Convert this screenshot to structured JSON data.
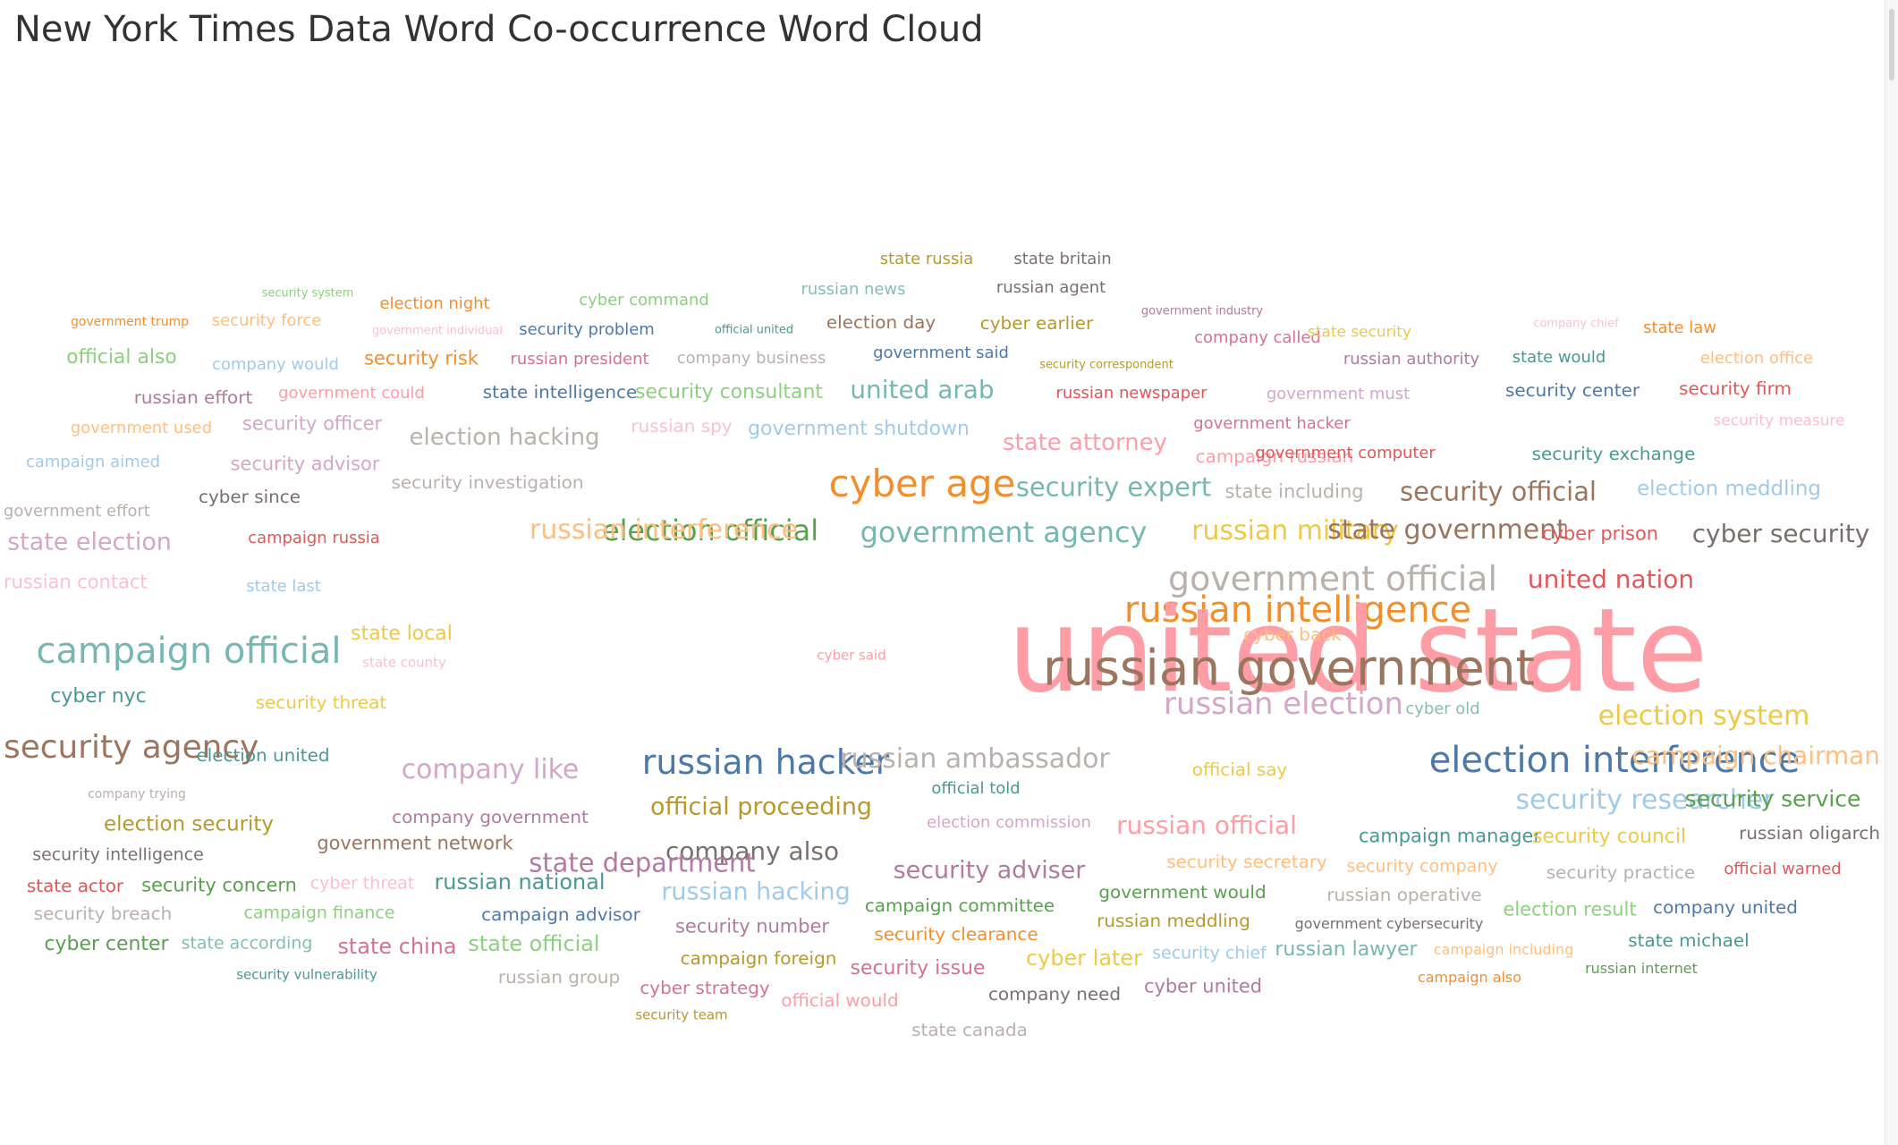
{
  "title": "New York Times Data Word Co-occurrence Word Cloud",
  "colors": {
    "c1": "#f28e2b",
    "c2": "#59a14f",
    "c3": "#4e79a7",
    "c4": "#e15759",
    "c5": "#76b7b2",
    "c6": "#edc948",
    "c7": "#b07aa1",
    "c8": "#ff9da7",
    "c9": "#9c755f",
    "c10": "#bab0ac",
    "c11": "#ffbe7d",
    "c12": "#8cd17d",
    "c13": "#499894",
    "c14": "#86bcb6",
    "c15": "#a0cbe8",
    "c16": "#d4a6c8",
    "c17": "#b6992d",
    "c18": "#79706e",
    "c19": "#d37295",
    "c20": "#fabfd2"
  },
  "chart_data": {
    "type": "wordcloud",
    "title": "New York Times Data Word Co-occurrence Word Cloud",
    "words": [
      {
        "text": "state russia",
        "weight": 18,
        "color": "#b6992d"
      },
      {
        "text": "state britain",
        "weight": 18,
        "color": "#79706e"
      },
      {
        "text": "security system",
        "weight": 13,
        "color": "#8cd17d"
      },
      {
        "text": "cyber command",
        "weight": 18,
        "color": "#8cd17d"
      },
      {
        "text": "russian news",
        "weight": 18,
        "color": "#86bcb6"
      },
      {
        "text": "russian agent",
        "weight": 18,
        "color": "#79706e"
      },
      {
        "text": "election night",
        "weight": 18,
        "color": "#f28e2b"
      },
      {
        "text": "government industry",
        "weight": 13,
        "color": "#b07aa1"
      },
      {
        "text": "government trump",
        "weight": 14,
        "color": "#f28e2b"
      },
      {
        "text": "security force",
        "weight": 18,
        "color": "#ffbe7d"
      },
      {
        "text": "government individual",
        "weight": 13,
        "color": "#fabfd2"
      },
      {
        "text": "security problem",
        "weight": 18,
        "color": "#4e79a7"
      },
      {
        "text": "official united",
        "weight": 13,
        "color": "#499894"
      },
      {
        "text": "election day",
        "weight": 20,
        "color": "#9c755f"
      },
      {
        "text": "cyber earlier",
        "weight": 20,
        "color": "#b6992d"
      },
      {
        "text": "company called",
        "weight": 18,
        "color": "#d37295"
      },
      {
        "text": "state security",
        "weight": 17,
        "color": "#edc948"
      },
      {
        "text": "company chief",
        "weight": 13,
        "color": "#fabfd2"
      },
      {
        "text": "state law",
        "weight": 18,
        "color": "#f28e2b"
      },
      {
        "text": "official also",
        "weight": 22,
        "color": "#8cd17d"
      },
      {
        "text": "company would",
        "weight": 18,
        "color": "#a0cbe8"
      },
      {
        "text": "security risk",
        "weight": 21,
        "color": "#f28e2b"
      },
      {
        "text": "russian president",
        "weight": 18,
        "color": "#d37295"
      },
      {
        "text": "company business",
        "weight": 18,
        "color": "#bab0ac"
      },
      {
        "text": "government said",
        "weight": 18,
        "color": "#4e79a7"
      },
      {
        "text": "security correspondent",
        "weight": 13,
        "color": "#b6992d"
      },
      {
        "text": "russian authority",
        "weight": 18,
        "color": "#b07aa1"
      },
      {
        "text": "state would",
        "weight": 18,
        "color": "#499894"
      },
      {
        "text": "election office",
        "weight": 18,
        "color": "#ffbe7d"
      },
      {
        "text": "russian effort",
        "weight": 20,
        "color": "#b07aa1"
      },
      {
        "text": "government could",
        "weight": 18,
        "color": "#ff9da7"
      },
      {
        "text": "state intelligence",
        "weight": 20,
        "color": "#4e79a7"
      },
      {
        "text": "security consultant",
        "weight": 22,
        "color": "#8cd17d"
      },
      {
        "text": "united arab",
        "weight": 28,
        "color": "#76b7b2"
      },
      {
        "text": "russian newspaper",
        "weight": 18,
        "color": "#e15759"
      },
      {
        "text": "government must",
        "weight": 18,
        "color": "#d4a6c8"
      },
      {
        "text": "security center",
        "weight": 20,
        "color": "#4e79a7"
      },
      {
        "text": "security firm",
        "weight": 20,
        "color": "#e15759"
      },
      {
        "text": "government used",
        "weight": 18,
        "color": "#ffbe7d"
      },
      {
        "text": "security officer",
        "weight": 21,
        "color": "#d4a6c8"
      },
      {
        "text": "election hacking",
        "weight": 26,
        "color": "#bab0ac"
      },
      {
        "text": "russian spy",
        "weight": 20,
        "color": "#fabfd2"
      },
      {
        "text": "government shutdown",
        "weight": 22,
        "color": "#a0cbe8"
      },
      {
        "text": "state attorney",
        "weight": 26,
        "color": "#ff9da7"
      },
      {
        "text": "government hacker",
        "weight": 18,
        "color": "#d37295"
      },
      {
        "text": "campaign russian",
        "weight": 20,
        "color": "#ff9da7"
      },
      {
        "text": "security measure",
        "weight": 17,
        "color": "#fabfd2"
      },
      {
        "text": "campaign aimed",
        "weight": 18,
        "color": "#a0cbe8"
      },
      {
        "text": "security advisor",
        "weight": 21,
        "color": "#d4a6c8"
      },
      {
        "text": "government computer",
        "weight": 18,
        "color": "#e15759"
      },
      {
        "text": "security exchange",
        "weight": 20,
        "color": "#499894"
      },
      {
        "text": "government effort",
        "weight": 18,
        "color": "#bab0ac"
      },
      {
        "text": "cyber since",
        "weight": 20,
        "color": "#79706e"
      },
      {
        "text": "security investigation",
        "weight": 20,
        "color": "#bab0ac"
      },
      {
        "text": "election official",
        "weight": 32,
        "color": "#59a14f"
      },
      {
        "text": "cyber age",
        "weight": 42,
        "color": "#f28e2b"
      },
      {
        "text": "security expert",
        "weight": 29,
        "color": "#76b7b2"
      },
      {
        "text": "state including",
        "weight": 21,
        "color": "#bab0ac"
      },
      {
        "text": "security official",
        "weight": 29,
        "color": "#9c755f"
      },
      {
        "text": "election meddling",
        "weight": 23,
        "color": "#a0cbe8"
      },
      {
        "text": "state election",
        "weight": 27,
        "color": "#d4a6c8"
      },
      {
        "text": "campaign russia",
        "weight": 18,
        "color": "#e15759"
      },
      {
        "text": "russian interference",
        "weight": 30,
        "color": "#ffbe7d"
      },
      {
        "text": "government agency",
        "weight": 32,
        "color": "#76b7b2"
      },
      {
        "text": "russian military",
        "weight": 30,
        "color": "#edc948"
      },
      {
        "text": "state government",
        "weight": 30,
        "color": "#9c755f"
      },
      {
        "text": "cyber prison",
        "weight": 21,
        "color": "#e15759"
      },
      {
        "text": "cyber security",
        "weight": 28,
        "color": "#79706e"
      },
      {
        "text": "russian contact",
        "weight": 21,
        "color": "#fabfd2"
      },
      {
        "text": "state last",
        "weight": 18,
        "color": "#a0cbe8"
      },
      {
        "text": "government official",
        "weight": 38,
        "color": "#bab0ac"
      },
      {
        "text": "united nation",
        "weight": 28,
        "color": "#e15759"
      },
      {
        "text": "russian intelligence",
        "weight": 40,
        "color": "#f28e2b"
      },
      {
        "text": "cyber said",
        "weight": 15,
        "color": "#ff9da7"
      },
      {
        "text": "united state",
        "weight": 130,
        "color": "#ff9da7"
      },
      {
        "text": "campaign official",
        "weight": 40,
        "color": "#76b7b2"
      },
      {
        "text": "state local",
        "weight": 22,
        "color": "#edc948"
      },
      {
        "text": "state county",
        "weight": 15,
        "color": "#fabfd2"
      },
      {
        "text": "cyber back",
        "weight": 20,
        "color": "#ffbe7d"
      },
      {
        "text": "russian government",
        "weight": 55,
        "color": "#9c755f"
      },
      {
        "text": "cyber nyc",
        "weight": 22,
        "color": "#499894"
      },
      {
        "text": "security threat",
        "weight": 20,
        "color": "#edc948"
      },
      {
        "text": "russian election",
        "weight": 34,
        "color": "#d4a6c8"
      },
      {
        "text": "cyber old",
        "weight": 18,
        "color": "#86bcb6"
      },
      {
        "text": "election system",
        "weight": 30,
        "color": "#edc948"
      },
      {
        "text": "security agency",
        "weight": 36,
        "color": "#9c755f"
      },
      {
        "text": "election united",
        "weight": 20,
        "color": "#499894"
      },
      {
        "text": "company like",
        "weight": 30,
        "color": "#d4a6c8"
      },
      {
        "text": "russian hacker",
        "weight": 38,
        "color": "#4e79a7"
      },
      {
        "text": "russian ambassador",
        "weight": 30,
        "color": "#bab0ac"
      },
      {
        "text": "official say",
        "weight": 20,
        "color": "#edc948"
      },
      {
        "text": "election interference",
        "weight": 40,
        "color": "#4e79a7"
      },
      {
        "text": "campaign chairman",
        "weight": 28,
        "color": "#ffbe7d"
      },
      {
        "text": "official told",
        "weight": 18,
        "color": "#499894"
      },
      {
        "text": "company trying",
        "weight": 14,
        "color": "#bab0ac"
      },
      {
        "text": "company government",
        "weight": 20,
        "color": "#b07aa1"
      },
      {
        "text": "official proceeding",
        "weight": 27,
        "color": "#b6992d"
      },
      {
        "text": "security researcher",
        "weight": 30,
        "color": "#a0cbe8"
      },
      {
        "text": "security service",
        "weight": 25,
        "color": "#59a14f"
      },
      {
        "text": "election security",
        "weight": 23,
        "color": "#b6992d"
      },
      {
        "text": "election commission",
        "weight": 18,
        "color": "#d4a6c8"
      },
      {
        "text": "russian official",
        "weight": 28,
        "color": "#ff9da7"
      },
      {
        "text": "company also",
        "weight": 28,
        "color": "#79706e"
      },
      {
        "text": "campaign manager",
        "weight": 21,
        "color": "#499894"
      },
      {
        "text": "security council",
        "weight": 22,
        "color": "#edc948"
      },
      {
        "text": "russian oligarch",
        "weight": 20,
        "color": "#79706e"
      },
      {
        "text": "security intelligence",
        "weight": 19,
        "color": "#79706e"
      },
      {
        "text": "government network",
        "weight": 21,
        "color": "#9c755f"
      },
      {
        "text": "state department",
        "weight": 29,
        "color": "#b07aa1"
      },
      {
        "text": "security secretary",
        "weight": 20,
        "color": "#ffbe7d"
      },
      {
        "text": "security company",
        "weight": 19,
        "color": "#ffbe7d"
      },
      {
        "text": "security practice",
        "weight": 20,
        "color": "#bab0ac"
      },
      {
        "text": "official warned",
        "weight": 18,
        "color": "#e15759"
      },
      {
        "text": "state actor",
        "weight": 20,
        "color": "#e15759"
      },
      {
        "text": "security concern",
        "weight": 21,
        "color": "#59a14f"
      },
      {
        "text": "cyber threat",
        "weight": 19,
        "color": "#fabfd2"
      },
      {
        "text": "russian national",
        "weight": 24,
        "color": "#499894"
      },
      {
        "text": "security adviser",
        "weight": 27,
        "color": "#b07aa1"
      },
      {
        "text": "russian hacking",
        "weight": 27,
        "color": "#a0cbe8"
      },
      {
        "text": "campaign committee",
        "weight": 20,
        "color": "#59a14f"
      },
      {
        "text": "government would",
        "weight": 20,
        "color": "#59a14f"
      },
      {
        "text": "russian operative",
        "weight": 20,
        "color": "#bab0ac"
      },
      {
        "text": "election result",
        "weight": 21,
        "color": "#8cd17d"
      },
      {
        "text": "company united",
        "weight": 20,
        "color": "#4e79a7"
      },
      {
        "text": "security breach",
        "weight": 20,
        "color": "#bab0ac"
      },
      {
        "text": "campaign finance",
        "weight": 19,
        "color": "#8cd17d"
      },
      {
        "text": "campaign advisor",
        "weight": 20,
        "color": "#4e79a7"
      },
      {
        "text": "russian meddling",
        "weight": 20,
        "color": "#b6992d"
      },
      {
        "text": "government cybersecurity",
        "weight": 16,
        "color": "#79706e"
      },
      {
        "text": "security number",
        "weight": 21,
        "color": "#b07aa1"
      },
      {
        "text": "security clearance",
        "weight": 20,
        "color": "#f28e2b"
      },
      {
        "text": "cyber center",
        "weight": 22,
        "color": "#59a14f"
      },
      {
        "text": "state according",
        "weight": 19,
        "color": "#86bcb6"
      },
      {
        "text": "state china",
        "weight": 24,
        "color": "#d37295"
      },
      {
        "text": "state official",
        "weight": 24,
        "color": "#8cd17d"
      },
      {
        "text": "cyber later",
        "weight": 24,
        "color": "#edc948"
      },
      {
        "text": "security chief",
        "weight": 19,
        "color": "#a0cbe8"
      },
      {
        "text": "russian lawyer",
        "weight": 22,
        "color": "#76b7b2"
      },
      {
        "text": "campaign including",
        "weight": 16,
        "color": "#ffbe7d"
      },
      {
        "text": "state michael",
        "weight": 20,
        "color": "#499894"
      },
      {
        "text": "campaign foreign",
        "weight": 20,
        "color": "#b6992d"
      },
      {
        "text": "security issue",
        "weight": 22,
        "color": "#d37295"
      },
      {
        "text": "russian group",
        "weight": 20,
        "color": "#bab0ac"
      },
      {
        "text": "campaign also",
        "weight": 16,
        "color": "#f28e2b"
      },
      {
        "text": "russian internet",
        "weight": 16,
        "color": "#59a14f"
      },
      {
        "text": "security vulnerability",
        "weight": 15,
        "color": "#499894"
      },
      {
        "text": "cyber strategy",
        "weight": 20,
        "color": "#d37295"
      },
      {
        "text": "official would",
        "weight": 20,
        "color": "#ff9da7"
      },
      {
        "text": "company need",
        "weight": 20,
        "color": "#79706e"
      },
      {
        "text": "cyber united",
        "weight": 21,
        "color": "#b07aa1"
      },
      {
        "text": "security team",
        "weight": 15,
        "color": "#b6992d"
      },
      {
        "text": "state canada",
        "weight": 20,
        "color": "#bab0ac"
      }
    ]
  }
}
